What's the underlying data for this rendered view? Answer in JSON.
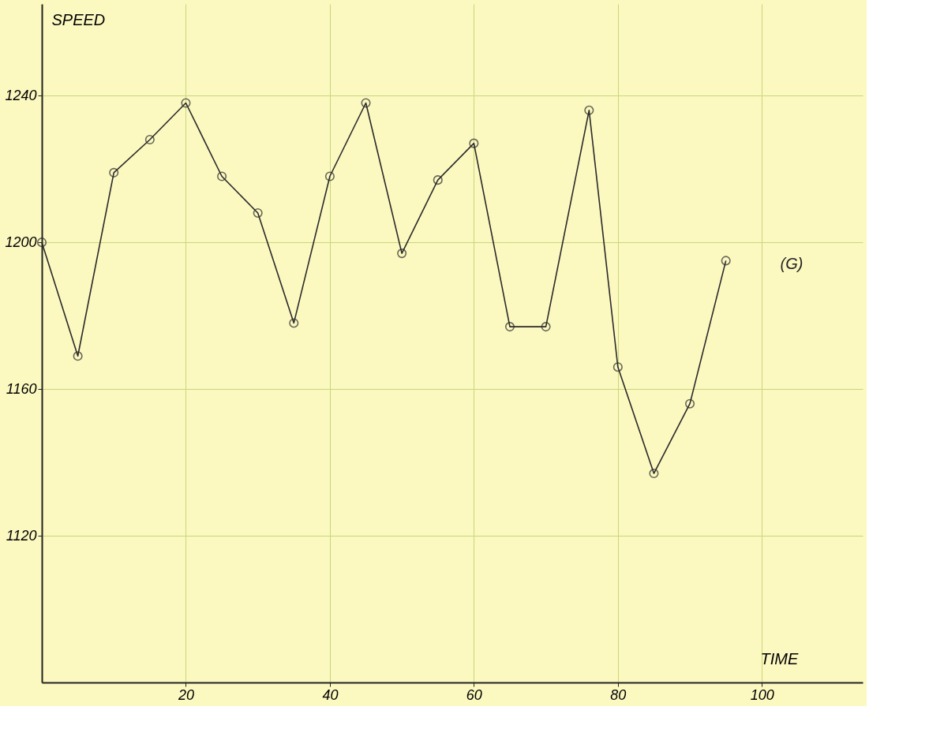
{
  "chart_data": {
    "type": "line",
    "xlabel": "TIME",
    "ylabel": "SPEED",
    "x": [
      0,
      5,
      10,
      15,
      20,
      25,
      30,
      35,
      40,
      45,
      50,
      55,
      60,
      65,
      70,
      76,
      80,
      85,
      90,
      95
    ],
    "series": [
      {
        "color": "#2a2a2a",
        "values": [
          1200,
          1169,
          1219,
          1228,
          1238,
          1218,
          1208,
          1178,
          1218,
          1238,
          1197,
          1217,
          1227,
          1177,
          1177,
          1236,
          1166,
          1137,
          1156,
          1195
        ]
      }
    ],
    "xlim": [
      0,
      114
    ],
    "ylim": [
      1080,
      1265
    ],
    "xticks": [
      20,
      40,
      60,
      80,
      100
    ],
    "yticks": [
      1120,
      1160,
      1200,
      1240
    ],
    "annotations": [
      "(G)"
    ],
    "grid": true,
    "marker": "circle",
    "line_style": "solid"
  }
}
